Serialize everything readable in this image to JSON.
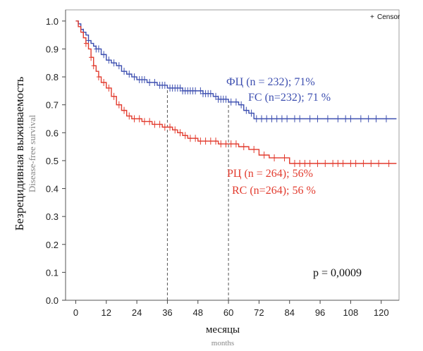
{
  "chart_data": {
    "type": "line",
    "ylabel": "Безрецидивная выживаемость",
    "ylabel_en": "Disease-free survival",
    "xlabel": "месяцы",
    "xlabel_en": "months",
    "xlim": [
      -4,
      127
    ],
    "ylim": [
      0,
      1.04
    ],
    "x_ticks": [
      0,
      12,
      24,
      36,
      48,
      60,
      72,
      84,
      96,
      108,
      120
    ],
    "y_ticks": [
      0.0,
      0.1,
      0.2,
      0.3,
      0.4,
      0.5,
      0.6,
      0.7,
      0.8,
      0.9,
      1.0
    ],
    "reference_lines_x": [
      36,
      60
    ],
    "legend": {
      "symbol": "+",
      "label": "Censor",
      "placement": "top-right"
    },
    "p_value_text": "p = 0,0009",
    "series": [
      {
        "name": "ФЦ (n = 232); 71%",
        "name_en": "FC (n=232); 71 %",
        "color": "#3d4fb0",
        "x": [
          0,
          1,
          2,
          3,
          4,
          5,
          6,
          7,
          8,
          10,
          12,
          14,
          16,
          18,
          20,
          22,
          24,
          26,
          28,
          30,
          32,
          34,
          36,
          38,
          40,
          42,
          44,
          46,
          48,
          50,
          52,
          54,
          56,
          58,
          60,
          62,
          64,
          66,
          68,
          70,
          72,
          80,
          90,
          100,
          110,
          120,
          126
        ],
        "y": [
          1.0,
          0.99,
          0.97,
          0.96,
          0.95,
          0.93,
          0.92,
          0.91,
          0.9,
          0.88,
          0.86,
          0.85,
          0.84,
          0.82,
          0.81,
          0.8,
          0.79,
          0.79,
          0.78,
          0.78,
          0.77,
          0.77,
          0.76,
          0.76,
          0.76,
          0.75,
          0.75,
          0.75,
          0.75,
          0.74,
          0.74,
          0.73,
          0.72,
          0.72,
          0.71,
          0.71,
          0.7,
          0.68,
          0.67,
          0.65,
          0.65,
          0.65,
          0.65,
          0.65,
          0.65,
          0.65,
          0.65
        ],
        "censor_x": [
          3,
          5,
          8,
          9,
          11,
          13,
          15,
          17,
          19,
          21,
          23,
          25,
          26,
          27,
          29,
          31,
          33,
          34,
          35,
          37,
          38,
          39,
          40,
          41,
          42,
          43,
          44,
          45,
          46,
          47,
          49,
          50,
          51,
          52,
          53,
          55,
          56,
          57,
          58,
          59,
          61,
          63,
          65,
          67,
          69,
          71,
          73,
          75,
          77,
          79,
          81,
          83,
          86,
          88,
          92,
          95,
          99,
          103,
          106,
          108,
          112,
          115,
          118,
          122
        ]
      },
      {
        "name": "РЦ (n = 264); 56%",
        "name_en": "RC (n=264); 56 %",
        "color": "#e23b2e",
        "x": [
          0,
          1,
          2,
          3,
          4,
          5,
          6,
          7,
          8,
          9,
          10,
          12,
          14,
          16,
          18,
          20,
          22,
          24,
          26,
          28,
          30,
          32,
          34,
          36,
          38,
          40,
          42,
          44,
          48,
          52,
          56,
          60,
          64,
          68,
          72,
          76,
          80,
          84,
          90,
          100,
          110,
          120,
          126
        ],
        "y": [
          1.0,
          0.98,
          0.96,
          0.94,
          0.92,
          0.9,
          0.87,
          0.84,
          0.82,
          0.8,
          0.78,
          0.76,
          0.73,
          0.7,
          0.68,
          0.66,
          0.65,
          0.65,
          0.64,
          0.64,
          0.63,
          0.63,
          0.62,
          0.62,
          0.61,
          0.6,
          0.59,
          0.58,
          0.57,
          0.57,
          0.56,
          0.56,
          0.55,
          0.54,
          0.52,
          0.51,
          0.51,
          0.49,
          0.49,
          0.49,
          0.49,
          0.49,
          0.49
        ],
        "censor_x": [
          4,
          6,
          7,
          9,
          11,
          13,
          15,
          17,
          19,
          21,
          23,
          25,
          27,
          29,
          31,
          33,
          35,
          37,
          39,
          41,
          43,
          45,
          47,
          49,
          51,
          53,
          55,
          57,
          59,
          61,
          63,
          66,
          70,
          74,
          78,
          82,
          86,
          88,
          90,
          92,
          95,
          98,
          101,
          103,
          105,
          108,
          110,
          113,
          116,
          119,
          123
        ]
      }
    ],
    "annotations": [
      {
        "text": "ФЦ (n = 232); 71%",
        "color": "#3d4fb0"
      },
      {
        "text": "FC (n=232); 71 %",
        "color": "#3d4fb0"
      },
      {
        "text": "РЦ (n = 264); 56%",
        "color": "#e23b2e"
      },
      {
        "text": "RC (n=264); 56 %",
        "color": "#e23b2e"
      }
    ]
  }
}
